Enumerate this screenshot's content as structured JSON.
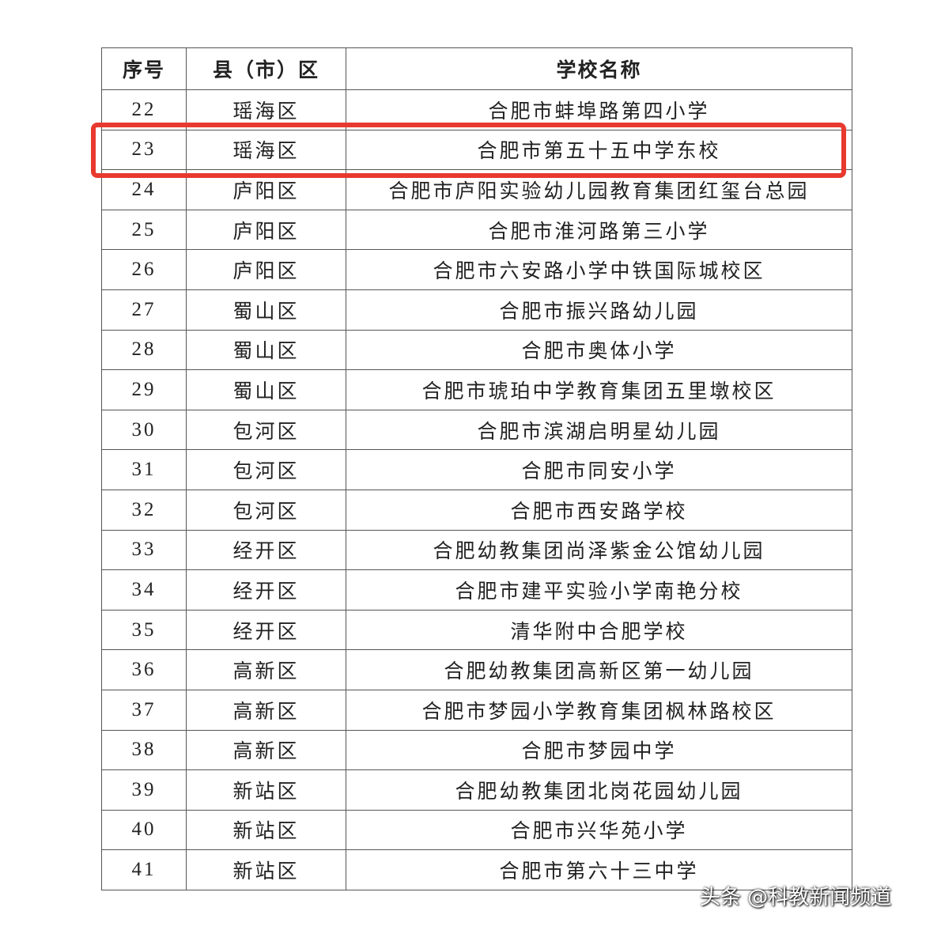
{
  "table": {
    "header": [
      "序号",
      "县（市）区",
      "学校名称"
    ],
    "rows": [
      [
        22,
        "瑶海区",
        "合肥市蚌埠路第四小学"
      ],
      [
        23,
        "瑶海区",
        "合肥市第五十五中学东校"
      ],
      [
        24,
        "庐阳区",
        "合肥市庐阳实验幼儿园教育集团红玺台总园"
      ],
      [
        25,
        "庐阳区",
        "合肥市淮河路第三小学"
      ],
      [
        26,
        "庐阳区",
        "合肥市六安路小学中铁国际城校区"
      ],
      [
        27,
        "蜀山区",
        "合肥市振兴路幼儿园"
      ],
      [
        28,
        "蜀山区",
        "合肥市奥体小学"
      ],
      [
        29,
        "蜀山区",
        "合肥市琥珀中学教育集团五里墩校区"
      ],
      [
        30,
        "包河区",
        "合肥市滨湖启明星幼儿园"
      ],
      [
        31,
        "包河区",
        "合肥市同安小学"
      ],
      [
        32,
        "包河区",
        "合肥市西安路学校"
      ],
      [
        33,
        "经开区",
        "合肥幼教集团尚泽紫金公馆幼儿园"
      ],
      [
        34,
        "经开区",
        "合肥市建平实验小学南艳分校"
      ],
      [
        35,
        "经开区",
        "清华附中合肥学校"
      ],
      [
        36,
        "高新区",
        "合肥幼教集团高新区第一幼儿园"
      ],
      [
        37,
        "高新区",
        "合肥市梦园小学教育集团枫林路校区"
      ],
      [
        38,
        "高新区",
        "合肥市梦园中学"
      ],
      [
        39,
        "新站区",
        "合肥幼教集团北岗花园幼儿园"
      ],
      [
        40,
        "新站区",
        "合肥市兴华苑小学"
      ],
      [
        41,
        "新站区",
        "合肥市第六十三中学"
      ]
    ]
  },
  "watermark": {
    "brand": "头条",
    "account": "@科教新闻频道"
  }
}
